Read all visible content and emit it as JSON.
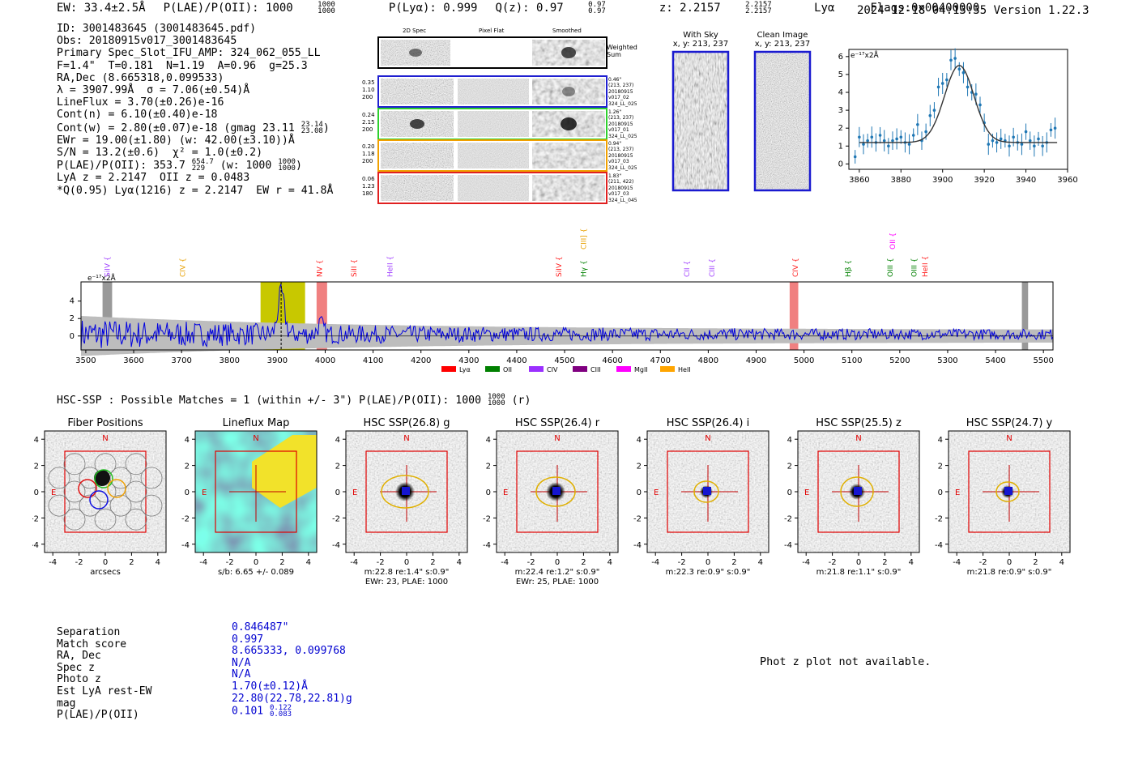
{
  "header": {
    "ew": "EW: 33.4±2.5Å",
    "plae_label": "P(LAE)/P(OII): 1000",
    "plae_hi": "1000",
    "plae_lo": "1000",
    "plya": "P(Lyα): 0.999",
    "qz_label": "Q(z): 0.97",
    "qz_hi": "0.97",
    "qz_lo": "0.97",
    "z_label": "z: 2.2157",
    "z_hi": "2.2157",
    "z_lo": "2.2157",
    "z_line": "Lyα",
    "flags": "Flags:0x00400000",
    "datetime": "2024-12-18 04:13:35",
    "version": "Version 1.22.3"
  },
  "info": {
    "id": "ID: 3001483645 (3001483645.pdf)",
    "obs": "Obs: 20180915v017_3001483645",
    "primary": "Primary Spec_Slot_IFU_AMP: 324_062_055_LL",
    "fparams": "F=1.4\"  T=0.181  N=1.19  A=0.96  g=25.3",
    "radec": "RA,Dec (8.665318,0.099533)",
    "lambda": "λ = 3907.99Å  σ = 7.06(±0.54)Å",
    "lineflux": "LineFlux = 3.70(±0.26)e-16",
    "contn": "Cont(n) = 6.10(±0.40)e-18",
    "contw": "Cont(w) = 2.80(±0.07)e-18 (gmag 23.11",
    "contw_hi": "23.14",
    "contw_lo": "23.08",
    "contw_end": ")",
    "ewr": "EWr = 19.00(±1.80) (w: 42.00(±3.10))Å",
    "sn": "S/N = 13.2(±0.6)  χ² = 1.0(±0.2)",
    "plae": "P(LAE)/P(OII): 353.7",
    "plae_hi": "654.7",
    "plae_lo": "229",
    "plae_mid": " (w: 1000",
    "plae_whi": "1000",
    "plae_wlo": "1000",
    "plae_end": ")",
    "lya": "LyA z = 2.2147  OII z = 0.0483",
    "q": "*Q(0.95) Lyα(1216) z = 2.2147  EW r = 41.8Å"
  },
  "cutouts": {
    "col_2d": "2D Spec",
    "col_flat": "Pixel Flat",
    "col_smooth": "Smoothed",
    "weighted": "Weighted",
    "sum": "Sum",
    "rows": [
      {
        "v1": "0.35",
        "v2": "1.10",
        "v3": "200",
        "a": "0.46\"",
        "b": "(213, 237)",
        "c": "20180915",
        "d": "v017_02",
        "e": "324_LL_025"
      },
      {
        "v1": "0.24",
        "v2": "2.15",
        "v3": "200",
        "a": "1.26\"",
        "b": "(213, 237)",
        "c": "20180915",
        "d": "v017_01",
        "e": "324_LL_025"
      },
      {
        "v1": "0.20",
        "v2": "1.18",
        "v3": "200",
        "a": "0.94\"",
        "b": "(213, 237)",
        "c": "20180915",
        "d": "v017_03",
        "e": "324_LL_025"
      },
      {
        "v1": "0.06",
        "v2": "1.23",
        "v3": "180",
        "a": "1.83\"",
        "b": "(211, 422)",
        "c": "20180915",
        "d": "v017_03",
        "e": "324_LL_045"
      }
    ],
    "with_sky": "With Sky",
    "with_sky_xy": "x, y: 213, 237",
    "clean": "Clean Image",
    "clean_xy": "x, y: 213, 237"
  },
  "line_fit": {
    "ylabel": "e⁻¹⁷x2Å",
    "xticks": [
      "3860",
      "3880",
      "3900",
      "3920",
      "3940",
      "3960"
    ],
    "yticks": [
      "0",
      "1",
      "2",
      "3",
      "4",
      "5",
      "6"
    ],
    "xlim": [
      3855,
      3960
    ],
    "ylim": [
      -0.3,
      6.4
    ],
    "points": [
      [
        3858,
        0.4
      ],
      [
        3860,
        1.5
      ],
      [
        3862,
        1.1
      ],
      [
        3864,
        1.3
      ],
      [
        3866,
        1.5
      ],
      [
        3868,
        1.2
      ],
      [
        3870,
        1.6
      ],
      [
        3872,
        1.3
      ],
      [
        3874,
        1.0
      ],
      [
        3876,
        1.3
      ],
      [
        3878,
        1.4
      ],
      [
        3880,
        1.5
      ],
      [
        3882,
        1.2
      ],
      [
        3884,
        1.1
      ],
      [
        3886,
        1.6
      ],
      [
        3888,
        2.2
      ],
      [
        3890,
        1.3
      ],
      [
        3892,
        1.8
      ],
      [
        3894,
        2.7
      ],
      [
        3896,
        3.0
      ],
      [
        3898,
        4.3
      ],
      [
        3900,
        4.5
      ],
      [
        3902,
        4.7
      ],
      [
        3904,
        5.8
      ],
      [
        3906,
        5.9
      ],
      [
        3908,
        5.3
      ],
      [
        3910,
        5.1
      ],
      [
        3912,
        4.3
      ],
      [
        3914,
        4.0
      ],
      [
        3916,
        3.9
      ],
      [
        3918,
        3.3
      ],
      [
        3920,
        2.3
      ],
      [
        3922,
        1.1
      ],
      [
        3924,
        1.3
      ],
      [
        3926,
        1.2
      ],
      [
        3928,
        1.4
      ],
      [
        3930,
        1.3
      ],
      [
        3932,
        1.0
      ],
      [
        3934,
        1.5
      ],
      [
        3936,
        1.2
      ],
      [
        3938,
        1.1
      ],
      [
        3940,
        1.8
      ],
      [
        3942,
        1.3
      ],
      [
        3944,
        1.0
      ],
      [
        3946,
        1.4
      ],
      [
        3948,
        1.0
      ],
      [
        3950,
        1.2
      ],
      [
        3952,
        1.9
      ],
      [
        3954,
        2.0
      ]
    ],
    "fit_center": 3908,
    "fit_sigma": 7.06,
    "fit_amp": 4.3,
    "fit_cont": 1.2
  },
  "spectrum": {
    "ylabel": "e⁻¹⁷x2Å",
    "xlim": [
      3490,
      5520
    ],
    "xticks": [
      "3500",
      "3600",
      "3700",
      "3800",
      "3900",
      "4000",
      "4100",
      "4200",
      "4300",
      "4400",
      "4500",
      "4600",
      "4700",
      "4800",
      "4900",
      "5000",
      "5100",
      "5200",
      "5300",
      "5400",
      "5500"
    ],
    "yticks": [
      "0",
      "2",
      "4"
    ],
    "lines": [
      {
        "name": "SiIV",
        "x": 3545,
        "color": "#a040ff",
        "row": 0
      },
      {
        "name": "CIV",
        "x": 3702,
        "color": "#e8a000",
        "row": 0
      },
      {
        "name": "NV",
        "x": 3988,
        "color": "#ff2020",
        "row": 0
      },
      {
        "name": "SiII",
        "x": 4060,
        "color": "#ff2020",
        "row": 0
      },
      {
        "name": "HeII",
        "x": 4135,
        "color": "#a040ff",
        "row": 0
      },
      {
        "name": "SiIV",
        "x": 4488,
        "color": "#ff2020",
        "row": 0
      },
      {
        "name": "CIII]",
        "x": 4540,
        "color": "#e8a000",
        "row": 1
      },
      {
        "name": "Hγ",
        "x": 4540,
        "color": "#008000",
        "row": 0
      },
      {
        "name": "CII",
        "x": 4755,
        "color": "#a040ff",
        "row": 0
      },
      {
        "name": "CIII",
        "x": 4808,
        "color": "#a040ff",
        "row": 0
      },
      {
        "name": "CIV",
        "x": 4982,
        "color": "#ff2020",
        "row": 0
      },
      {
        "name": "Hβ",
        "x": 5092,
        "color": "#008000",
        "row": 0
      },
      {
        "name": "OII",
        "x": 5185,
        "color": "#ff00ff",
        "row": 1
      },
      {
        "name": "OIII",
        "x": 5180,
        "color": "#008000",
        "row": 0
      },
      {
        "name": "OIII",
        "x": 5230,
        "color": "#008000",
        "row": 0
      },
      {
        "name": "HeII",
        "x": 5253,
        "color": "#ff2020",
        "row": 0
      }
    ],
    "legend": [
      {
        "name": "Lyα",
        "color": "#ff0000"
      },
      {
        "name": "OII",
        "color": "#008000"
      },
      {
        "name": "CIV",
        "color": "#9b30ff"
      },
      {
        "name": "CIII",
        "color": "#800080"
      },
      {
        "name": "MgII",
        "color": "#ff00ff"
      },
      {
        "name": "HeII",
        "color": "#ffa500"
      }
    ]
  },
  "hsc": {
    "summary": "HSC-SSP : Possible Matches = 1 (within +/- 3\")  P(LAE)/P(OII): 1000",
    "summary_hi": "1000",
    "summary_lo": "1000",
    "summary_end": "(r)",
    "panels": [
      {
        "title": "Fiber Positions",
        "line1": "arcsecs",
        "line2": ""
      },
      {
        "title": "Lineflux Map",
        "line1": "s/b: 6.65 +/- 0.089",
        "line2": ""
      },
      {
        "title": "HSC SSP(26.8) g",
        "line1": "m:22.8  re:1.4\"  s:0.9\"",
        "line2": "EWr: 23, PLAE: 1000"
      },
      {
        "title": "HSC SSP(26.4) r",
        "line1": "m:22.4  re:1.2\"  s:0.9\"",
        "line2": "EWr: 25, PLAE: 1000"
      },
      {
        "title": "HSC SSP(26.4) i",
        "line1": "m:22.3  re:0.9\"  s:0.9\"",
        "line2": ""
      },
      {
        "title": "HSC SSP(25.5) z",
        "line1": "m:21.8  re:1.1\"  s:0.9\"",
        "line2": ""
      },
      {
        "title": "HSC SSP(24.7) y",
        "line1": "m:21.8  re:0.9\"  s:0.9\"",
        "line2": ""
      }
    ],
    "ticks": [
      "-4",
      "-2",
      "0",
      "2",
      "4"
    ],
    "north": "N",
    "east": "E"
  },
  "match": {
    "labels": [
      "Separation",
      "Match score",
      "RA, Dec",
      "Spec z",
      "Photo z",
      "Est LyA rest-EW",
      "mag",
      "P(LAE)/P(OII)"
    ],
    "values": [
      "0.846487\"",
      "0.997",
      "8.665333, 0.099768",
      "N/A",
      "N/A",
      "1.70(±0.12)Å",
      "22.80(22.78,22.81)g",
      "0.101"
    ],
    "plae_hi": "0.122",
    "plae_lo": "0.083",
    "photz_msg": "Phot z plot not available."
  }
}
